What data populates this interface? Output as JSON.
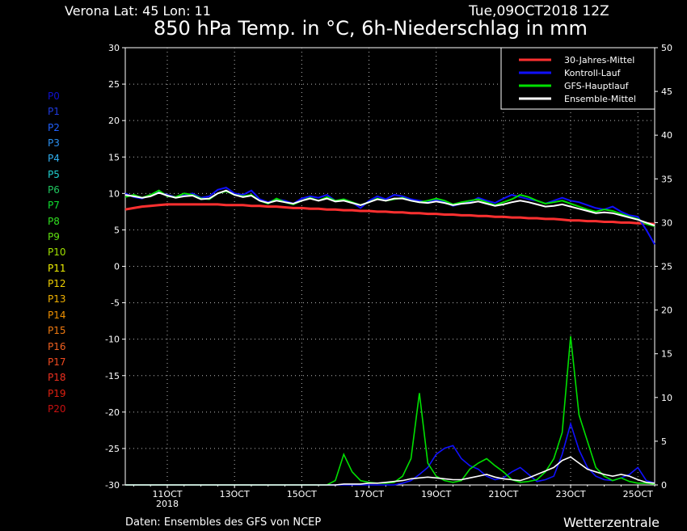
{
  "header": {
    "location": "Verona   Lat: 45 Lon: 11",
    "datetime": "Tue,09OCT2018 12Z",
    "title": "850 hPa Temp. in °C, 6h-Niederschlag in mm"
  },
  "footer": {
    "source": "Daten: Ensembles des GFS von NCEP",
    "brand": "Wetterzentrale"
  },
  "members": [
    {
      "label": "P0",
      "color": "#1010d0"
    },
    {
      "label": "P1",
      "color": "#1f3be0"
    },
    {
      "label": "P2",
      "color": "#2060ff"
    },
    {
      "label": "P3",
      "color": "#2a8ff0"
    },
    {
      "label": "P4",
      "color": "#30b0f0"
    },
    {
      "label": "P5",
      "color": "#20d0d0"
    },
    {
      "label": "P6",
      "color": "#20c860"
    },
    {
      "label": "P7",
      "color": "#10e030"
    },
    {
      "label": "P8",
      "color": "#30e020"
    },
    {
      "label": "P9",
      "color": "#60e010"
    },
    {
      "label": "P10",
      "color": "#a0e000"
    },
    {
      "label": "P11",
      "color": "#f0f000"
    },
    {
      "label": "P12",
      "color": "#f0d000"
    },
    {
      "label": "P13",
      "color": "#f0b000"
    },
    {
      "label": "P14",
      "color": "#f09000"
    },
    {
      "label": "P15",
      "color": "#f07a10"
    },
    {
      "label": "P16",
      "color": "#f06020"
    },
    {
      "label": "P17",
      "color": "#f04a20"
    },
    {
      "label": "P18",
      "color": "#f03020"
    },
    {
      "label": "P19",
      "color": "#e02010"
    },
    {
      "label": "P20",
      "color": "#c81010"
    }
  ],
  "chart_data": {
    "type": "line",
    "title": "850 hPa Temp. in °C, 6h-Niederschlag in mm",
    "x": {
      "start": "09OCT2018 18Z",
      "end": "25OCT2018 12Z",
      "step_hours": 6,
      "tick_labels": [
        "11OCT",
        "13OCT",
        "15OCT",
        "17OCT",
        "19OCT",
        "21OCT",
        "23OCT",
        "25OCT"
      ],
      "tick_sublabel": "2018"
    },
    "y_left": {
      "label": "°C",
      "range": [
        -30,
        30
      ],
      "ticks": [
        30,
        25,
        20,
        15,
        10,
        5,
        0,
        -5,
        -10,
        -15,
        -20,
        -25,
        -30
      ]
    },
    "y_right": {
      "label": "mm",
      "range": [
        0,
        50
      ],
      "ticks": [
        50,
        45,
        40,
        35,
        30,
        25,
        20,
        15,
        10,
        5,
        0
      ]
    },
    "grid": true,
    "legend": {
      "position": "top-right",
      "entries": [
        {
          "name": "30-Jahres-Mittel",
          "color": "#ff3030"
        },
        {
          "name": "Kontroll-Lauf",
          "color": "#1010ff"
        },
        {
          "name": "GFS-Hauptlauf",
          "color": "#00e000"
        },
        {
          "name": "Ensemble-Mittel",
          "color": "#ffffff"
        }
      ]
    },
    "series": [
      {
        "name": "30-Jahres-Mittel",
        "axis": "left",
        "color": "#ff3030",
        "values": [
          7.8,
          8.0,
          8.2,
          8.3,
          8.4,
          8.5,
          8.5,
          8.5,
          8.5,
          8.5,
          8.5,
          8.5,
          8.4,
          8.4,
          8.4,
          8.3,
          8.3,
          8.2,
          8.2,
          8.1,
          8.0,
          8.0,
          7.9,
          7.9,
          7.8,
          7.8,
          7.7,
          7.7,
          7.6,
          7.6,
          7.5,
          7.5,
          7.4,
          7.4,
          7.3,
          7.3,
          7.2,
          7.2,
          7.1,
          7.1,
          7.0,
          7.0,
          6.9,
          6.9,
          6.8,
          6.8,
          6.7,
          6.7,
          6.6,
          6.6,
          6.5,
          6.5,
          6.4,
          6.3,
          6.3,
          6.2,
          6.2,
          6.1,
          6.1,
          6.0,
          6.0,
          5.9,
          5.9,
          5.8
        ]
      },
      {
        "name": "Kontroll-Lauf",
        "axis": "left",
        "color": "#1010ff",
        "values": [
          10.0,
          9.5,
          9.3,
          9.8,
          10.2,
          9.8,
          9.5,
          9.7,
          10.0,
          9.4,
          9.6,
          10.5,
          10.8,
          10.0,
          9.8,
          10.4,
          9.2,
          8.8,
          9.2,
          9.0,
          8.6,
          9.3,
          9.6,
          9.4,
          9.8,
          9.0,
          9.2,
          8.8,
          8.0,
          9.0,
          9.6,
          9.2,
          9.8,
          9.6,
          9.2,
          9.0,
          8.8,
          9.1,
          8.8,
          8.3,
          8.6,
          8.8,
          9.4,
          9.0,
          8.7,
          9.3,
          9.8,
          9.5,
          9.2,
          9.0,
          8.6,
          9.0,
          9.4,
          9.0,
          8.8,
          8.4,
          8.0,
          7.8,
          8.2,
          7.5,
          7.0,
          6.8,
          5.0,
          3.0
        ]
      },
      {
        "name": "GFS-Hauptlauf",
        "axis": "left",
        "color": "#00e000",
        "values": [
          9.5,
          9.8,
          9.4,
          9.8,
          10.4,
          9.6,
          9.5,
          10.0,
          9.8,
          9.3,
          9.2,
          10.0,
          10.3,
          9.8,
          9.6,
          9.8,
          9.0,
          8.6,
          9.3,
          8.8,
          8.5,
          9.0,
          9.4,
          9.0,
          9.5,
          9.0,
          9.2,
          8.8,
          8.4,
          8.8,
          9.3,
          9.0,
          9.2,
          9.4,
          9.0,
          8.8,
          9.0,
          9.3,
          9.0,
          8.5,
          8.8,
          9.0,
          9.2,
          8.8,
          8.4,
          8.8,
          9.2,
          9.8,
          9.5,
          9.0,
          8.6,
          8.8,
          9.0,
          8.6,
          8.2,
          7.8,
          7.5,
          7.8,
          7.6,
          7.2,
          6.8,
          6.5,
          5.8,
          5.5
        ]
      },
      {
        "name": "Ensemble-Mittel",
        "axis": "left",
        "color": "#ffffff",
        "values": [
          9.8,
          9.6,
          9.4,
          9.6,
          10.1,
          9.7,
          9.4,
          9.6,
          9.7,
          9.2,
          9.3,
          10.0,
          10.4,
          9.8,
          9.5,
          9.7,
          9.0,
          8.7,
          9.0,
          8.8,
          8.6,
          9.0,
          9.3,
          9.0,
          9.3,
          8.9,
          9.0,
          8.7,
          8.4,
          8.8,
          9.2,
          9.0,
          9.3,
          9.3,
          9.0,
          8.8,
          8.7,
          8.9,
          8.7,
          8.4,
          8.6,
          8.7,
          8.9,
          8.6,
          8.3,
          8.5,
          8.8,
          9.0,
          8.8,
          8.5,
          8.2,
          8.3,
          8.5,
          8.2,
          7.9,
          7.6,
          7.3,
          7.4,
          7.3,
          7.0,
          6.7,
          6.4,
          6.0,
          5.6
        ]
      }
    ],
    "precip_series": [
      {
        "name": "Kontroll-Lauf",
        "axis": "right",
        "color": "#1010ff",
        "values": [
          0,
          0,
          0,
          0,
          0,
          0,
          0,
          0,
          0,
          0,
          0,
          0,
          0,
          0,
          0,
          0,
          0,
          0,
          0,
          0,
          0,
          0,
          0,
          0,
          0,
          0,
          0,
          0,
          0,
          0,
          0,
          0,
          0,
          0.2,
          0.5,
          1.2,
          2.0,
          3.5,
          4.2,
          4.5,
          3.0,
          2.2,
          1.8,
          1.0,
          0.6,
          0.8,
          1.5,
          2.0,
          1.2,
          0.4,
          0.6,
          1.0,
          3.5,
          7.0,
          4.0,
          2.0,
          1.0,
          0.6,
          0.5,
          0.8,
          1.2,
          2.0,
          0.5,
          0.2
        ]
      },
      {
        "name": "GFS-Hauptlauf",
        "axis": "right",
        "color": "#00e000",
        "values": [
          0,
          0,
          0,
          0,
          0,
          0,
          0,
          0,
          0,
          0,
          0,
          0,
          0,
          0,
          0,
          0,
          0,
          0,
          0,
          0,
          0,
          0,
          0,
          0,
          0,
          0.5,
          3.5,
          1.5,
          0.5,
          0.3,
          0.2,
          0.2,
          0.3,
          1.0,
          3.0,
          10.5,
          2.5,
          1.0,
          0.5,
          0.3,
          0.5,
          1.8,
          2.5,
          3.0,
          2.2,
          1.5,
          0.6,
          0.3,
          0.4,
          0.6,
          1.5,
          3.0,
          6.0,
          17.0,
          8.0,
          5.0,
          2.0,
          1.0,
          0.5,
          0.8,
          0.4,
          0.2,
          0.2,
          0.1
        ]
      },
      {
        "name": "Ensemble-Mittel",
        "axis": "right",
        "color": "#ffffff",
        "values": [
          0,
          0,
          0,
          0,
          0,
          0,
          0,
          0,
          0,
          0,
          0,
          0,
          0,
          0,
          0,
          0,
          0,
          0,
          0,
          0,
          0,
          0,
          0,
          0,
          0,
          0,
          0.1,
          0.1,
          0.1,
          0.2,
          0.2,
          0.3,
          0.4,
          0.5,
          0.7,
          0.8,
          0.9,
          0.8,
          0.7,
          0.6,
          0.6,
          0.8,
          1.0,
          1.2,
          0.9,
          0.7,
          0.6,
          0.5,
          0.8,
          1.2,
          1.6,
          2.0,
          2.8,
          3.2,
          2.5,
          1.8,
          1.5,
          1.2,
          1.0,
          1.2,
          1.0,
          0.6,
          0.3,
          0.2
        ]
      }
    ]
  }
}
